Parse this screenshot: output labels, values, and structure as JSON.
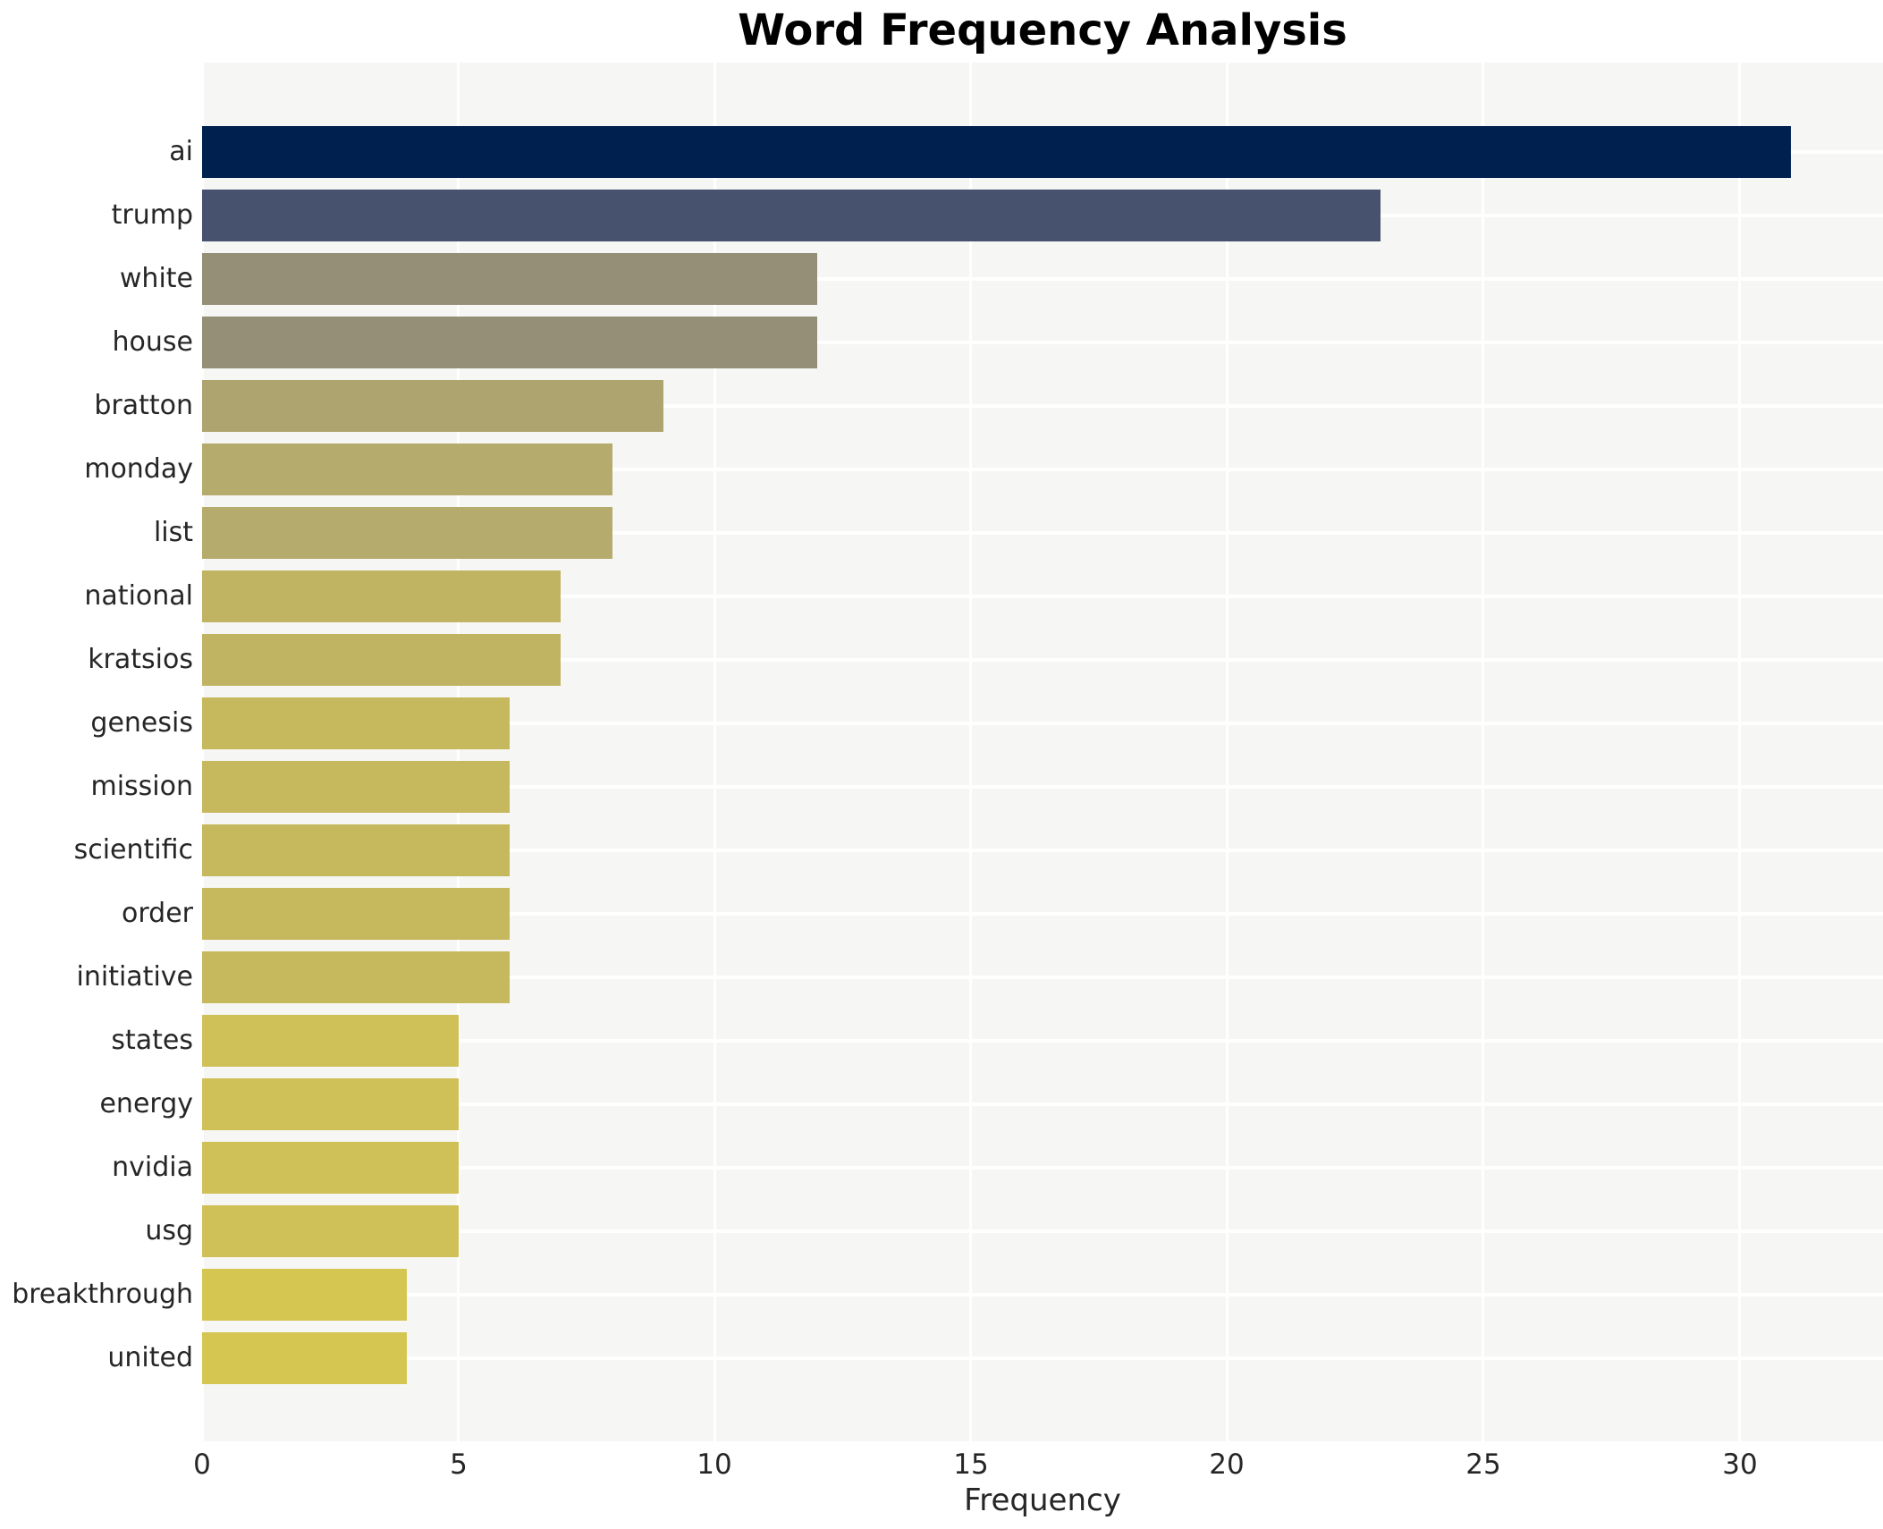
{
  "chart_data": {
    "type": "bar",
    "orientation": "horizontal",
    "title": "Word Frequency Analysis",
    "xlabel": "Frequency",
    "ylabel": "",
    "categories": [
      "ai",
      "trump",
      "white",
      "house",
      "bratton",
      "monday",
      "list",
      "national",
      "kratsios",
      "genesis",
      "mission",
      "scientific",
      "order",
      "initiative",
      "states",
      "energy",
      "nvidia",
      "usg",
      "breakthrough",
      "united"
    ],
    "values": [
      31,
      23,
      12,
      12,
      9,
      8,
      8,
      7,
      7,
      6,
      6,
      6,
      6,
      6,
      5,
      5,
      5,
      5,
      4,
      4
    ],
    "bar_colors": [
      "#002150",
      "#46526e",
      "#958f77",
      "#958f77",
      "#ada46f",
      "#b5ab6c",
      "#b5ab6c",
      "#c0b462",
      "#c0b462",
      "#c6b85d",
      "#c6b85d",
      "#c6b85d",
      "#c6b85d",
      "#c6b85d",
      "#cfc157",
      "#cfc157",
      "#cfc157",
      "#cfc157",
      "#d5c551",
      "#d5c551"
    ],
    "xlim": [
      0,
      32.8
    ],
    "xticks": [
      0,
      5,
      10,
      15,
      20,
      25,
      30
    ],
    "xtick_labels": [
      "0",
      "5",
      "10",
      "15",
      "20",
      "25",
      "30"
    ],
    "grid": true,
    "legend": false,
    "colormap": "cividis",
    "plot_bg_color": "#f6f6f4",
    "grid_color": "#ffffff",
    "text_color": "#262626",
    "title_color": "#000000"
  }
}
